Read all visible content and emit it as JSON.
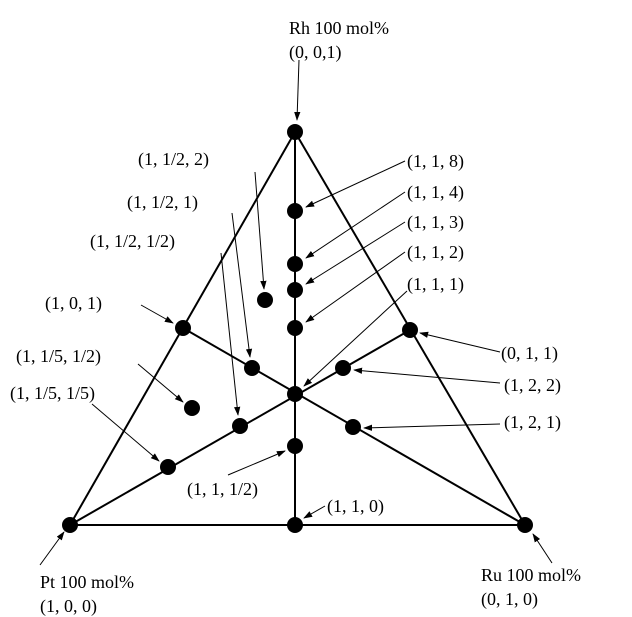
{
  "vertices": {
    "top": {
      "name": "Rh 100 mol%",
      "coords": "(0, 0,1)"
    },
    "left": {
      "name": "Pt 100 mol%",
      "coords": "(1, 0, 0)"
    },
    "right": {
      "name": "Ru 100 mol%",
      "coords": "(0, 1, 0)"
    }
  },
  "compositions": [
    {
      "id": "rh",
      "label": ""
    },
    {
      "id": "pt",
      "label": ""
    },
    {
      "id": "ru",
      "label": ""
    },
    {
      "id": "1-1-8",
      "label": "(1, 1, 8)"
    },
    {
      "id": "1-1-4",
      "label": "(1, 1, 4)"
    },
    {
      "id": "1-1-3",
      "label": "(1, 1, 3)"
    },
    {
      "id": "1-1-2",
      "label": "(1, 1, 2)"
    },
    {
      "id": "1-1-1",
      "label": "(1, 1, 1)"
    },
    {
      "id": "1-1-half",
      "label": "(1, 1, 1/2)"
    },
    {
      "id": "1-1-0",
      "label": "(1, 1, 0)"
    },
    {
      "id": "1-half-2",
      "label": "(1, 1/2, 2)"
    },
    {
      "id": "1-half-1",
      "label": "(1, 1/2, 1)"
    },
    {
      "id": "1-half-half",
      "label": "(1, 1/2, 1/2)"
    },
    {
      "id": "1-0-1",
      "label": "(1, 0, 1)"
    },
    {
      "id": "1-fifth-half",
      "label": "(1, 1/5, 1/2)"
    },
    {
      "id": "1-fifth-fifth",
      "label": "(1, 1/5, 1/5)"
    },
    {
      "id": "0-1-1",
      "label": "(0, 1, 1)"
    },
    {
      "id": "1-2-2",
      "label": "(1, 2, 2)"
    },
    {
      "id": "1-2-1",
      "label": "(1, 2, 1)"
    }
  ]
}
